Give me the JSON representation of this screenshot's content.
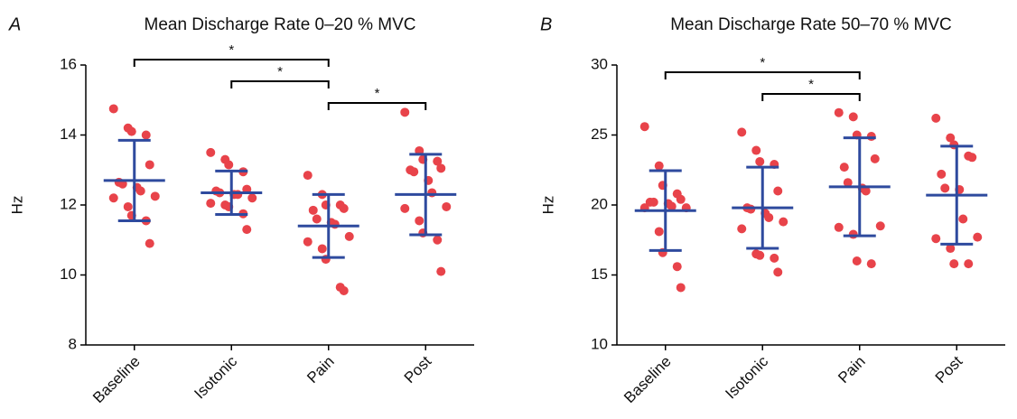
{
  "chart_data": [
    {
      "type": "strip",
      "panel_label": "A",
      "title": "Mean Discharge Rate 0–20 % MVC",
      "y_label": "Hz",
      "categories": [
        "Baseline",
        "Isotonic",
        "Pain",
        "Post"
      ],
      "points": [
        [
          14.75,
          14.2,
          14.1,
          14.0,
          13.15,
          12.65,
          12.6,
          12.5,
          12.4,
          12.25,
          12.2,
          11.95,
          11.7,
          11.55,
          10.9
        ],
        [
          13.5,
          13.3,
          13.15,
          12.95,
          12.45,
          12.4,
          12.35,
          12.3,
          12.3,
          12.2,
          12.05,
          12.0,
          11.95,
          11.75,
          11.3
        ],
        [
          12.85,
          12.3,
          12.0,
          12.0,
          11.9,
          11.85,
          11.6,
          11.5,
          11.45,
          11.1,
          10.95,
          10.75,
          10.45,
          9.65,
          9.55
        ],
        [
          14.65,
          13.55,
          13.3,
          13.25,
          13.05,
          13.0,
          12.95,
          12.7,
          12.35,
          11.95,
          11.9,
          11.55,
          11.2,
          11.0,
          10.1
        ]
      ],
      "mean": [
        12.7,
        12.35,
        11.4,
        12.3
      ],
      "sd": [
        1.15,
        0.62,
        0.9,
        1.15
      ],
      "point_color": "#e8434a",
      "bar_color": "#2e4a9e",
      "ylim": [
        8,
        16
      ],
      "yticks": [
        8,
        10,
        12,
        14,
        16
      ],
      "significance": [
        {
          "from": 0,
          "to": 2,
          "label": "*"
        },
        {
          "from": 1,
          "to": 2,
          "label": "*"
        },
        {
          "from": 2,
          "to": 3,
          "label": "*"
        }
      ]
    },
    {
      "type": "strip",
      "panel_label": "B",
      "title": "Mean Discharge Rate 50–70 % MVC",
      "y_label": "Hz",
      "categories": [
        "Baseline",
        "Isotonic",
        "Pain",
        "Post"
      ],
      "points": [
        [
          25.6,
          22.8,
          21.4,
          20.8,
          20.4,
          20.2,
          20.2,
          20.1,
          19.9,
          19.8,
          19.8,
          18.1,
          16.6,
          15.6,
          14.1
        ],
        [
          25.2,
          23.9,
          23.1,
          22.9,
          21.0,
          19.8,
          19.7,
          19.4,
          19.1,
          18.8,
          18.3,
          16.5,
          16.4,
          16.2,
          15.2
        ],
        [
          26.6,
          26.3,
          25.0,
          24.9,
          23.3,
          22.7,
          21.6,
          21.2,
          21.0,
          18.5,
          18.4,
          17.9,
          16.0,
          15.8
        ],
        [
          26.2,
          24.8,
          24.3,
          23.5,
          23.4,
          22.2,
          21.2,
          21.1,
          19.0,
          17.7,
          17.6,
          16.9,
          15.8,
          15.8
        ]
      ],
      "mean": [
        19.6,
        19.8,
        21.3,
        20.7
      ],
      "sd": [
        2.85,
        2.9,
        3.5,
        3.5
      ],
      "point_color": "#e8434a",
      "bar_color": "#2e4a9e",
      "ylim": [
        10,
        30
      ],
      "yticks": [
        10,
        15,
        20,
        25,
        30
      ],
      "significance": [
        {
          "from": 0,
          "to": 2,
          "label": "*"
        },
        {
          "from": 1,
          "to": 2,
          "label": "*"
        }
      ]
    }
  ]
}
